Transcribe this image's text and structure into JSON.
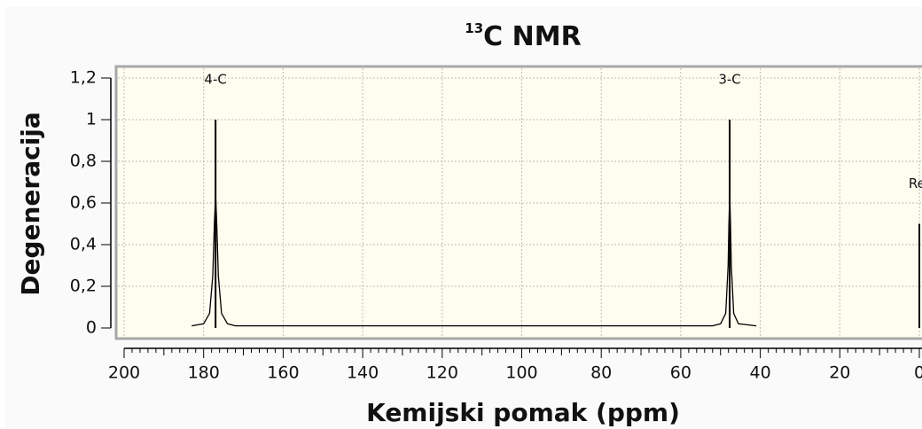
{
  "chart_data": {
    "type": "stick",
    "title_sup": "13",
    "title": "C NMR",
    "xlabel": "Kemijski pomak (ppm)",
    "ylabel": "Degeneracija",
    "xlim": [
      200,
      0
    ],
    "xticks": [
      200,
      180,
      160,
      140,
      120,
      100,
      80,
      60,
      40,
      20,
      0
    ],
    "x_minor_per_major": 10,
    "ylim": [
      0,
      1.2
    ],
    "yticks": [
      0,
      {
        "value": 0.2,
        "label": "0,2"
      },
      {
        "value": 0.4,
        "label": "0,4"
      },
      {
        "value": 0.6,
        "label": "0,6"
      },
      {
        "value": 0.8,
        "label": "0,8"
      },
      1,
      {
        "value": 1.2,
        "label": "1,2"
      }
    ],
    "grid": true,
    "sticks": {
      "labels": [
        "4-C",
        "3-C",
        "Ref"
      ],
      "x": [
        177,
        47.7,
        0
      ],
      "values": [
        1,
        1,
        0.5
      ],
      "color": "#000000"
    },
    "spectrum": {
      "color": "#000000",
      "x": [
        183,
        180,
        178.5,
        177.7,
        177.3,
        177,
        176.7,
        176.3,
        175.5,
        174,
        172,
        52,
        50,
        48.7,
        48.1,
        47.9,
        47.7,
        47.5,
        47.3,
        46.7,
        45.5,
        41
      ],
      "values": [
        0.01,
        0.02,
        0.07,
        0.25,
        0.5,
        0.64,
        0.5,
        0.25,
        0.07,
        0.02,
        0.01,
        0.01,
        0.02,
        0.07,
        0.3,
        0.5,
        0.64,
        0.5,
        0.3,
        0.07,
        0.02,
        0.01
      ]
    }
  }
}
